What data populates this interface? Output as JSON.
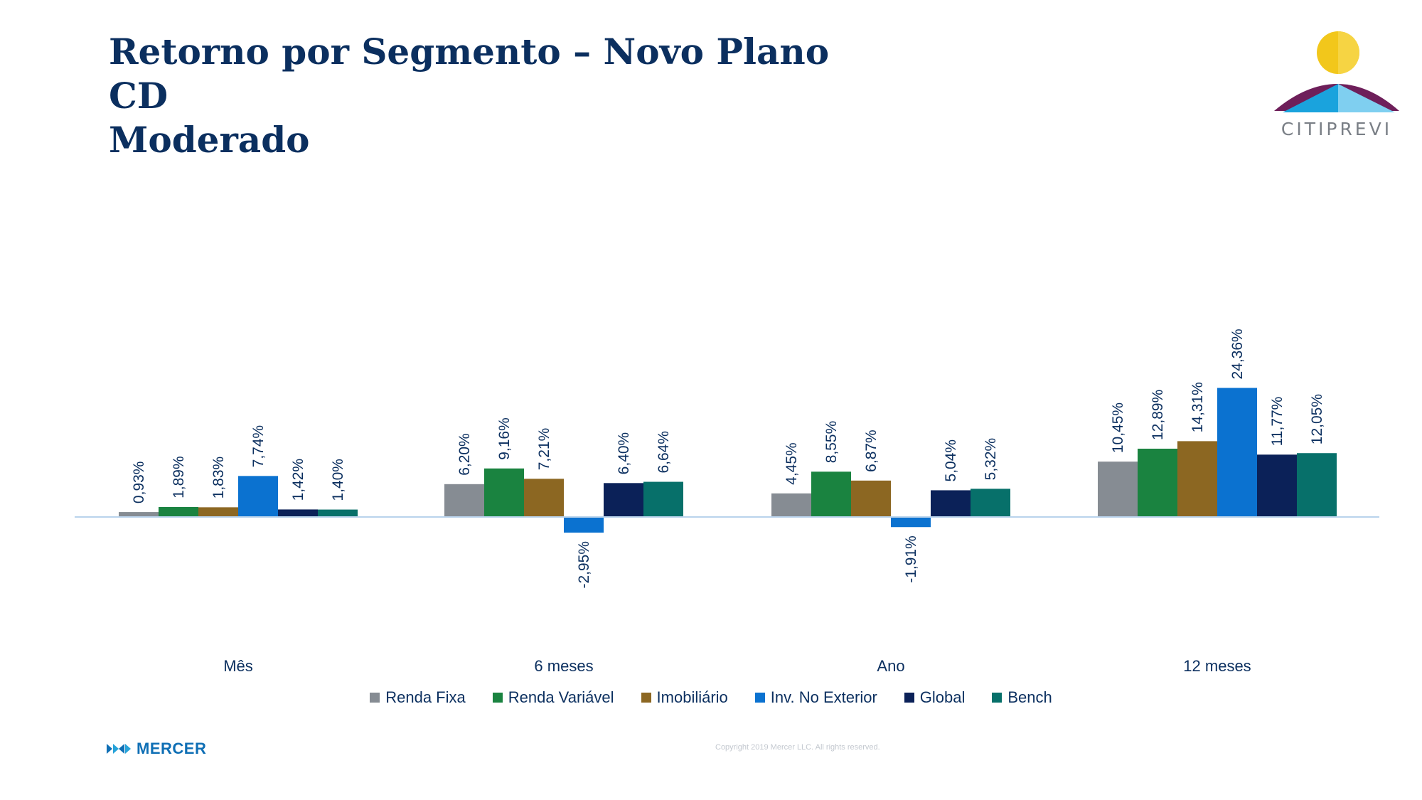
{
  "slide": {
    "title_line1": "Retorno por Segmento – Novo Plano CD",
    "title_line2": "Moderado",
    "logo_text": "CITIPREVI",
    "footer_brand": "MERCER",
    "copyright": "Copyright 2019 Mercer LLC. All rights reserved."
  },
  "colors": {
    "title": "#0b2f5f",
    "axis": "#b9d3ec"
  },
  "chart_data": {
    "type": "bar",
    "categories": [
      "Mês",
      "6 meses",
      "Ano",
      "12 meses"
    ],
    "series": [
      {
        "name": "Renda Fixa",
        "color": "#868c93",
        "values": [
          0.93,
          6.2,
          4.45,
          10.45
        ],
        "labels": [
          "0,93%",
          "6,20%",
          "4,45%",
          "10,45%"
        ]
      },
      {
        "name": "Renda Variável",
        "color": "#1a8340",
        "values": [
          1.89,
          9.16,
          8.55,
          12.89
        ],
        "labels": [
          "1,89%",
          "9,16%",
          "8,55%",
          "12,89%"
        ]
      },
      {
        "name": "Imobiliário",
        "color": "#8c6722",
        "values": [
          1.83,
          7.21,
          6.87,
          14.31
        ],
        "labels": [
          "1,83%",
          "7,21%",
          "6,87%",
          "14,31%"
        ]
      },
      {
        "name": "Inv. No Exterior",
        "color": "#0b72d0",
        "values": [
          7.74,
          -2.95,
          -1.91,
          24.36
        ],
        "labels": [
          "7,74%",
          "-2,95%",
          "-1,91%",
          "24,36%"
        ]
      },
      {
        "name": "Global",
        "color": "#0b2158",
        "values": [
          1.42,
          6.4,
          5.04,
          11.77
        ],
        "labels": [
          "1,42%",
          "6,40%",
          "5,04%",
          "11,77%"
        ]
      },
      {
        "name": "Bench",
        "color": "#07706a",
        "values": [
          1.4,
          6.64,
          5.32,
          12.05
        ],
        "labels": [
          "1,40%",
          "6,64%",
          "5,32%",
          "12,05%"
        ]
      }
    ],
    "legend_position": "bottom",
    "grid": false
  }
}
